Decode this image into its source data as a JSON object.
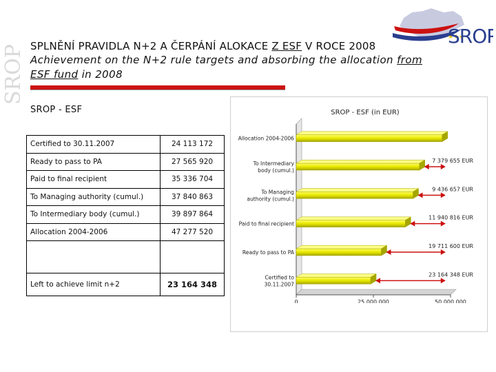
{
  "header": {
    "title_cz_prefix": "SPLNĚNÍ PRAVIDLA N+2 A ČERPÁNÍ ALOKACE ",
    "title_cz_underlined": "Z ESF",
    "title_cz_suffix": " V ROCE 2008",
    "title_en_prefix": "Achievement on the N+2 rule targets and absorbing the allocation ",
    "title_en_underlined_1": "from",
    "title_en_underlined_2": "ESF fund",
    "title_en_suffix": " in 2008",
    "logo_text": "SROP",
    "side_logo_text": "SROP"
  },
  "section_title": "SROP - ESF",
  "table": {
    "rows": [
      {
        "label": "Certified to 30.11.2007",
        "value": "24 113 172"
      },
      {
        "label": "Ready to pass to PA",
        "value": "27 565 920"
      },
      {
        "label": "Paid to final recipient",
        "value": "35 336 704"
      },
      {
        "label": "To Managing authority (cumul.)",
        "value": "37 840 863"
      },
      {
        "label": "To Intermediary body (cumul.)",
        "value": "39 897 864"
      },
      {
        "label": "Allocation 2004-2006",
        "value": "47 277 520"
      }
    ],
    "total": {
      "label": "Left to achieve limit n+2",
      "value": "23 164 348"
    }
  },
  "colors": {
    "bar": "#e8e800",
    "bar_dark": "#a6a600",
    "arrow": "#cc1111",
    "accent_red": "#cc1111",
    "logo_blue": "#2a3f8f"
  },
  "chart_data": {
    "type": "bar",
    "orientation": "horizontal",
    "title": "SROP - ESF (in EUR)",
    "categories": [
      "Allocation 2004-2006",
      "To Intermediary body (cumul.)",
      "To Managing authority (cumul.)",
      "Paid to final recipient",
      "Ready to pass to PA",
      "Certified to 30.11.2007"
    ],
    "category_labels": [
      [
        "Allocation 2004-2006"
      ],
      [
        "To Intermediary",
        "body (cumul.)"
      ],
      [
        "To Managing",
        "authority (cumul.)"
      ],
      [
        "Paid to final recipient"
      ],
      [
        "Ready to pass to PA"
      ],
      [
        "Certified to",
        "30.11.2007"
      ]
    ],
    "values": [
      47277520,
      39897864,
      37840863,
      35336704,
      27565920,
      24113172
    ],
    "annotations": [
      "7 379 655 EUR",
      "9 436 657 EUR",
      "11 940 816 EUR",
      "19 711 600 EUR",
      "23 164 348 EUR"
    ],
    "xlim": [
      0,
      50000000
    ],
    "x_ticks": [
      "0",
      "25 000 000",
      "50 000 000"
    ],
    "grid": false,
    "legend": "none"
  }
}
